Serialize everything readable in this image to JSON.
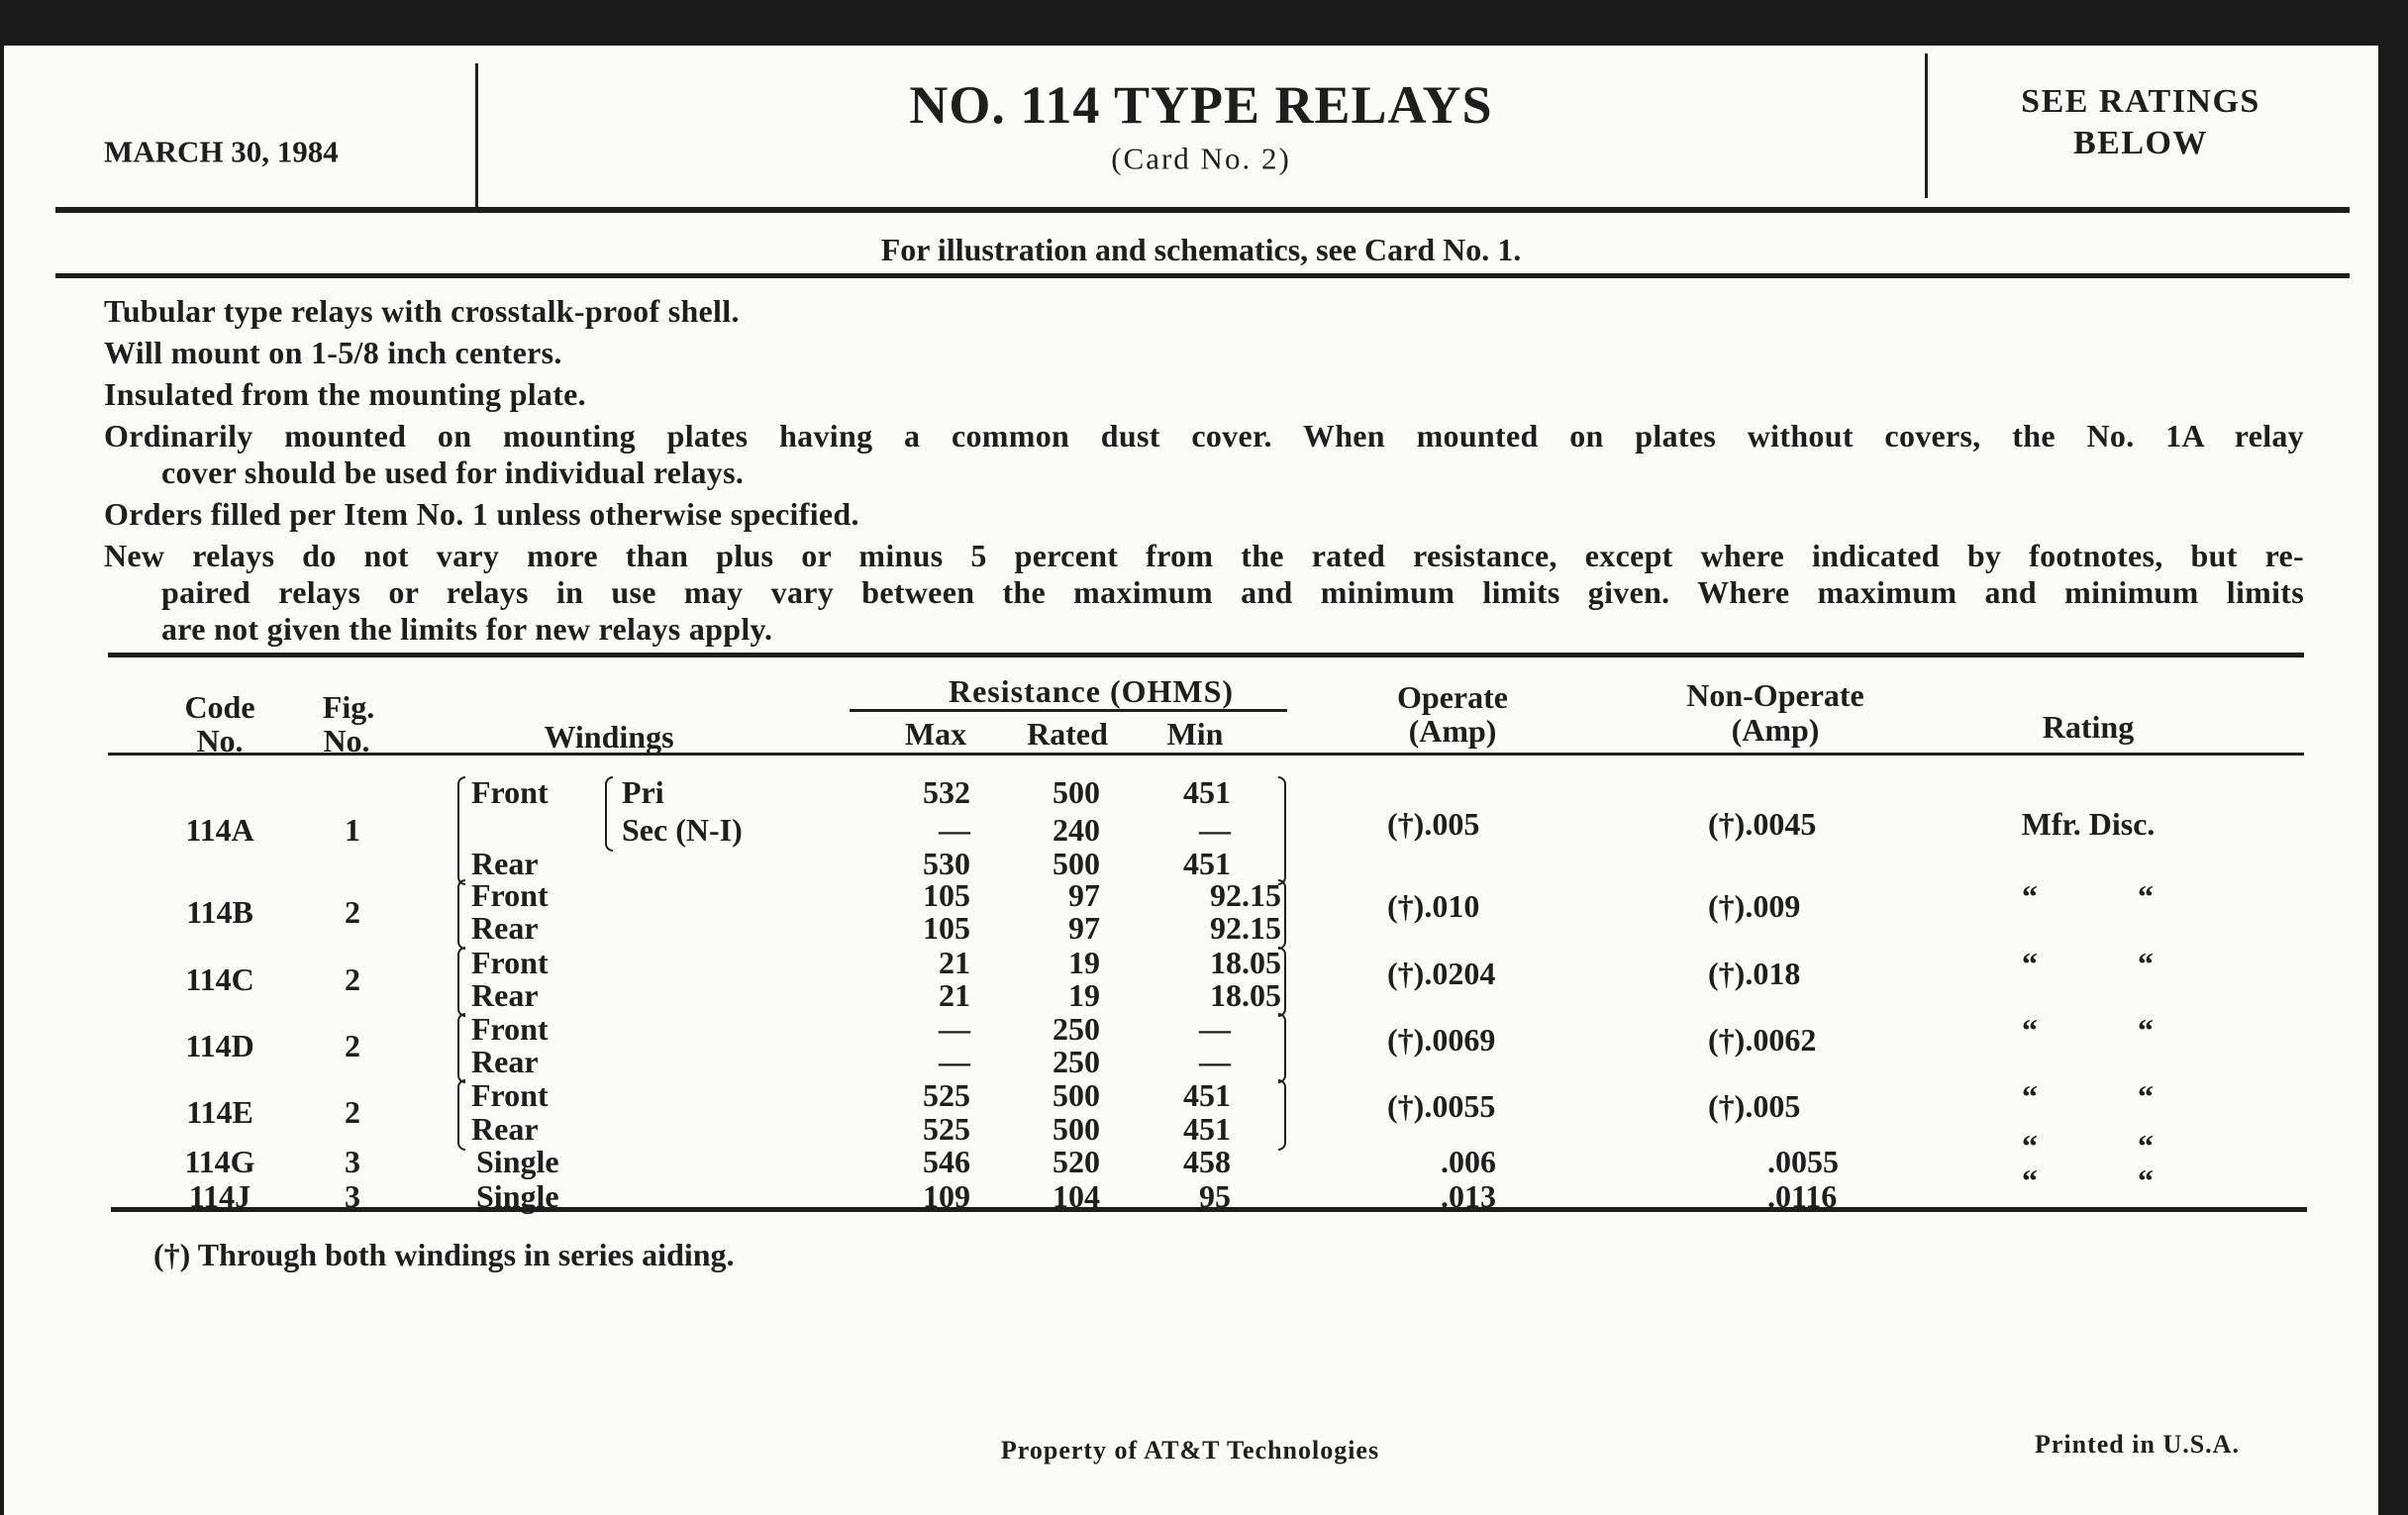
{
  "header": {
    "date": "MARCH 30, 1984",
    "title": "NO. 114 TYPE RELAYS",
    "subtitle": "(Card No. 2)",
    "ratings_note_line1": "SEE RATINGS",
    "ratings_note_line2": "BELOW"
  },
  "reference_note": "For illustration and schematics, see Card No. 1.",
  "paragraphs": [
    [
      "Tubular type relays with crosstalk-proof shell."
    ],
    [
      "Will mount on 1-5/8 inch centers."
    ],
    [
      "Insulated from the mounting plate."
    ],
    [
      "Ordinarily mounted on mounting plates having a common dust cover.  When mounted on plates without covers, the No. 1A relay",
      "cover should be used for individual relays."
    ],
    [
      "Orders filled per Item No. 1 unless otherwise specified."
    ],
    [
      "New relays do not vary more than plus or minus 5 percent from the rated resistance, except where indicated by footnotes, but re-",
      "paired relays or relays in use may vary between the maximum and minimum limits given. Where maximum and minimum limits",
      "are not given the limits for new relays apply."
    ]
  ],
  "table": {
    "headers": {
      "code_1": "Code",
      "code_2": "No.",
      "fig_1": "Fig.",
      "fig_2": "No.",
      "windings": "Windings",
      "resistance": "Resistance (OHMS)",
      "max": "Max",
      "rated": "Rated",
      "min": "Min",
      "operate_1": "Operate",
      "operate_2": "(Amp)",
      "nonoperate_1": "Non-Operate",
      "nonoperate_2": "(Amp)",
      "rating": "Rating"
    },
    "rows": [
      {
        "code": "114A",
        "fig": "1",
        "operate": "(†).005",
        "nonoperate": "(†).0045",
        "rating": "Mfr. Disc.",
        "windings": [
          {
            "label": "Front",
            "sub": "Pri",
            "max": "532",
            "rated": "500",
            "min": "451"
          },
          {
            "label": "",
            "sub": "Sec (N-I)",
            "max": "—",
            "rated": "240",
            "min": "—"
          },
          {
            "label": "Rear",
            "sub": "",
            "max": "530",
            "rated": "500",
            "min": "451"
          }
        ]
      },
      {
        "code": "114B",
        "fig": "2",
        "operate": "(†).010",
        "nonoperate": "(†).009",
        "rating_ditto": [
          "“",
          "“"
        ],
        "windings": [
          {
            "label": "Front",
            "sub": "",
            "max": "105",
            "rated": "97",
            "min": "92.15"
          },
          {
            "label": "Rear",
            "sub": "",
            "max": "105",
            "rated": "97",
            "min": "92.15"
          }
        ]
      },
      {
        "code": "114C",
        "fig": "2",
        "operate": "(†).0204",
        "nonoperate": "(†).018",
        "rating_ditto": [
          "“",
          "“"
        ],
        "windings": [
          {
            "label": "Front",
            "sub": "",
            "max": "21",
            "rated": "19",
            "min": "18.05"
          },
          {
            "label": "Rear",
            "sub": "",
            "max": "21",
            "rated": "19",
            "min": "18.05"
          }
        ]
      },
      {
        "code": "114D",
        "fig": "2",
        "operate": "(†).0069",
        "nonoperate": "(†).0062",
        "rating_ditto": [
          "“",
          "“"
        ],
        "windings": [
          {
            "label": "Front",
            "sub": "",
            "max": "—",
            "rated": "250",
            "min": "—"
          },
          {
            "label": "Rear",
            "sub": "",
            "max": "—",
            "rated": "250",
            "min": "—"
          }
        ]
      },
      {
        "code": "114E",
        "fig": "2",
        "operate": "(†).0055",
        "nonoperate": "(†).005",
        "rating_ditto": [
          "“",
          "“"
        ],
        "windings": [
          {
            "label": "Front",
            "sub": "",
            "max": "525",
            "rated": "500",
            "min": "451"
          },
          {
            "label": "Rear",
            "sub": "",
            "max": "525",
            "rated": "500",
            "min": "451"
          }
        ]
      },
      {
        "code": "114G",
        "fig": "3",
        "operate": ".006",
        "nonoperate": ".0055",
        "rating_ditto": [
          "“",
          "“"
        ],
        "windings": [
          {
            "label": "Single",
            "sub": "",
            "max": "546",
            "rated": "520",
            "min": "458"
          }
        ]
      },
      {
        "code": "114J",
        "fig": "3",
        "operate": ".013",
        "nonoperate": ".0116",
        "rating_ditto": [
          "“",
          "“"
        ],
        "windings": [
          {
            "label": "Single",
            "sub": "",
            "max": "109",
            "rated": "104",
            "min": "95"
          }
        ]
      }
    ]
  },
  "footnote": "(†)  Through both windings in series aiding.",
  "footer": {
    "property": "Property of AT&T Technologies",
    "printed": "Printed in U.S.A."
  }
}
